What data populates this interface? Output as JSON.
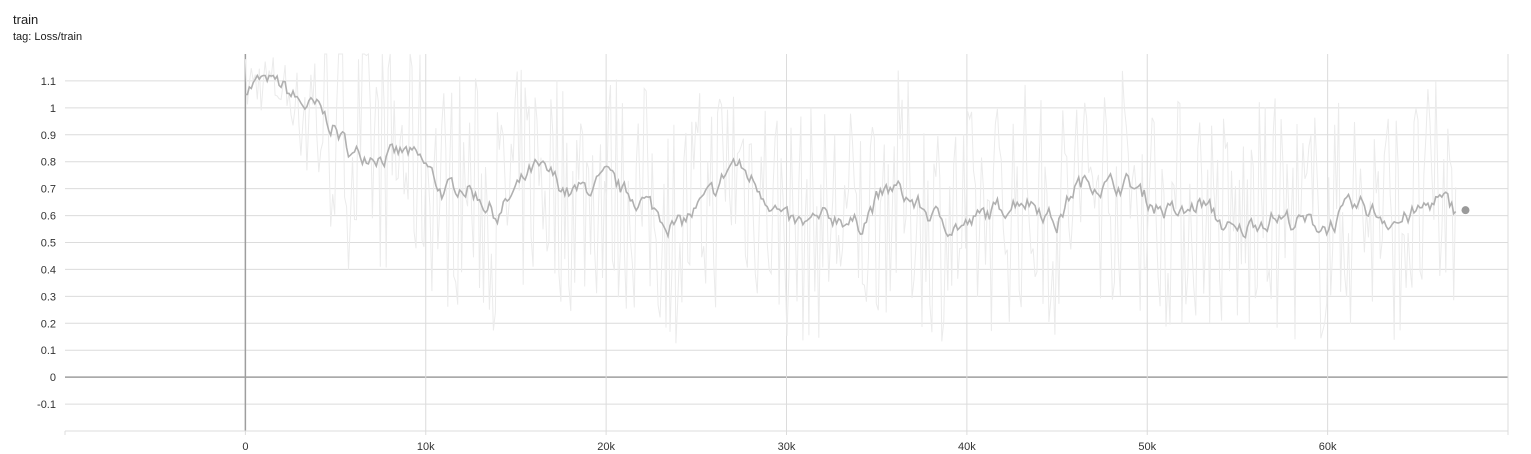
{
  "header": {
    "title": "train",
    "tag": "tag: Loss/train"
  },
  "colors": {
    "grid": "#dcdcdc",
    "axis_zero": "#9e9e9e",
    "raw_line": "#ebebeb",
    "smoothed_line": "#b0b0b0",
    "point": "#9a9a9a"
  },
  "chart_data": {
    "type": "line",
    "title": "train",
    "subtitle": "tag: Loss/train",
    "xlabel": "",
    "ylabel": "",
    "xlim": [
      -10000,
      70000
    ],
    "ylim": [
      -0.2,
      1.2
    ],
    "grid": true,
    "x_ticks": [
      0,
      10000,
      20000,
      30000,
      40000,
      50000,
      60000
    ],
    "x_tick_labels": [
      "0",
      "10k",
      "20k",
      "30k",
      "40k",
      "50k",
      "60k"
    ],
    "y_ticks": [
      1.1,
      1.0,
      0.9,
      0.8,
      0.7,
      0.6,
      0.5,
      0.4,
      0.3,
      0.2,
      0.1,
      0,
      -0.1
    ],
    "y_tick_labels": [
      "1.1",
      "1",
      "0.9",
      "0.8",
      "0.7",
      "0.6",
      "0.5",
      "0.4",
      "0.3",
      "0.2",
      "0.1",
      "0",
      "-0.1"
    ],
    "series": [
      {
        "style": "smoothed",
        "x": [
          0,
          1000,
          2000,
          3000,
          4000,
          5000,
          6000,
          7000,
          8000,
          9000,
          10000,
          11000,
          12000,
          13000,
          14000,
          15000,
          16000,
          17000,
          18000,
          19000,
          20000,
          21000,
          22000,
          23000,
          24000,
          25000,
          26000,
          27000,
          28000,
          29000,
          30000,
          31000,
          32000,
          33000,
          34000,
          35000,
          36000,
          37000,
          38000,
          39000,
          40000,
          41000,
          42000,
          43000,
          44000,
          45000,
          46000,
          47000,
          48000,
          49000,
          50000,
          51000,
          52000,
          53000,
          54000,
          55000,
          56000,
          57000,
          58000,
          59000,
          60000,
          61000,
          62000,
          63000,
          64000,
          65000,
          66000,
          67000
        ],
        "y": [
          1.08,
          1.1,
          1.08,
          1.02,
          0.99,
          0.92,
          0.82,
          0.84,
          0.82,
          0.83,
          0.78,
          0.68,
          0.72,
          0.67,
          0.6,
          0.69,
          0.77,
          0.74,
          0.68,
          0.7,
          0.73,
          0.68,
          0.66,
          0.6,
          0.56,
          0.62,
          0.68,
          0.8,
          0.74,
          0.67,
          0.57,
          0.56,
          0.58,
          0.6,
          0.56,
          0.66,
          0.7,
          0.65,
          0.6,
          0.57,
          0.56,
          0.6,
          0.63,
          0.67,
          0.64,
          0.57,
          0.71,
          0.73,
          0.71,
          0.72,
          0.66,
          0.62,
          0.6,
          0.65,
          0.58,
          0.52,
          0.58,
          0.6,
          0.58,
          0.57,
          0.56,
          0.61,
          0.63,
          0.6,
          0.58,
          0.61,
          0.66,
          0.62
        ]
      }
    ]
  }
}
